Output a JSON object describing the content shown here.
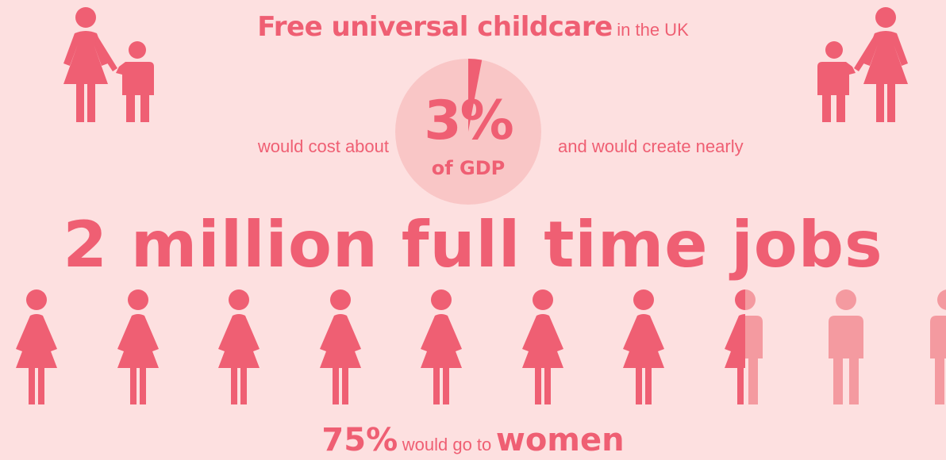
{
  "headline": {
    "strong": "Free universal childcare",
    "rest": "in the UK"
  },
  "cost": {
    "before": "would cost about",
    "percent": "3%",
    "unit": "of GDP",
    "after": "and would create nearly"
  },
  "jobs": {
    "label": "2 million full time jobs"
  },
  "women_share": {
    "percent": "75%",
    "middle": "would go to",
    "group": "women",
    "fraction_women": 0.75
  },
  "pie": {
    "share_percent": 3
  },
  "colors": {
    "background": "#fde0e0",
    "accent": "#ef5f73",
    "light_accent": "#f49aa0",
    "pie_fill": "#f9c6c6"
  },
  "icons": {
    "parent_child_left": "mother-and-child-icon",
    "parent_child_right": "mother-and-child-icon",
    "woman": "woman-icon",
    "man": "man-icon"
  }
}
